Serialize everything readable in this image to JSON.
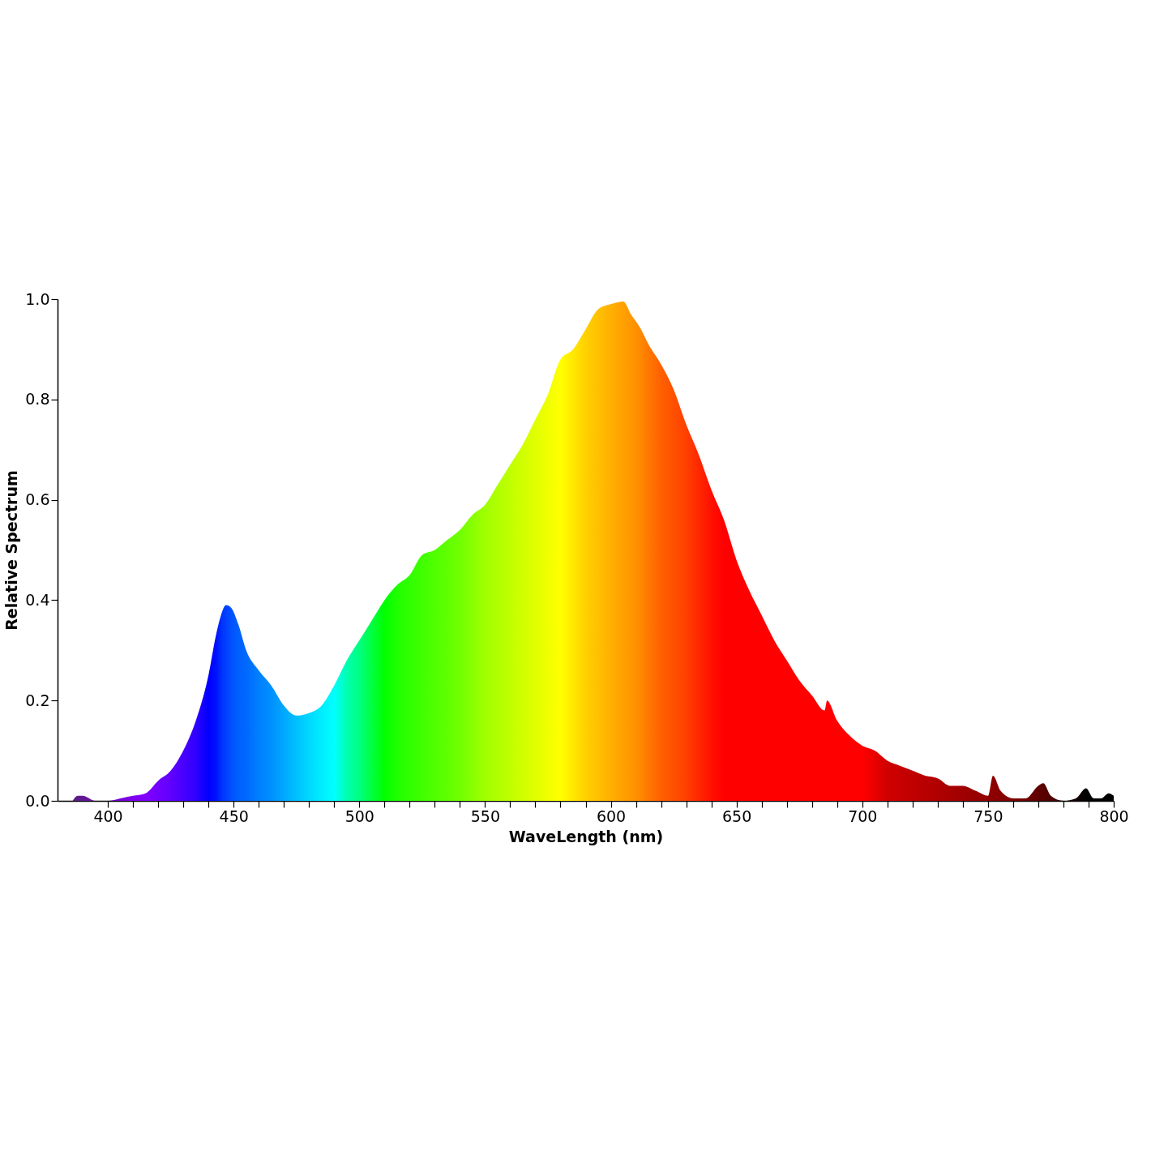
{
  "chart_data": {
    "type": "area",
    "xlabel": "WaveLength (nm)",
    "ylabel": "Relative Spectrum",
    "xlim": [
      380,
      800
    ],
    "ylim": [
      0,
      1
    ],
    "xticks": [
      400,
      {
        "value": 410,
        "label": null
      },
      {
        "value": 420,
        "label": null
      },
      {
        "value": 430,
        "label": null
      },
      {
        "value": 440,
        "label": null
      },
      450,
      {
        "value": 460,
        "label": null
      },
      {
        "value": 470,
        "label": null
      },
      {
        "value": 480,
        "label": null
      },
      {
        "value": 490,
        "label": null
      },
      500,
      {
        "value": 510,
        "label": null
      },
      {
        "value": 520,
        "label": null
      },
      {
        "value": 530,
        "label": null
      },
      {
        "value": 540,
        "label": null
      },
      550,
      {
        "value": 560,
        "label": null
      },
      {
        "value": 570,
        "label": null
      },
      {
        "value": 580,
        "label": null
      },
      {
        "value": 590,
        "label": null
      },
      600,
      {
        "value": 610,
        "label": null
      },
      {
        "value": 620,
        "label": null
      },
      {
        "value": 630,
        "label": null
      },
      {
        "value": 640,
        "label": null
      },
      650,
      {
        "value": 660,
        "label": null
      },
      {
        "value": 670,
        "label": null
      },
      {
        "value": 680,
        "label": null
      },
      {
        "value": 690,
        "label": null
      },
      700,
      {
        "value": 710,
        "label": null
      },
      {
        "value": 720,
        "label": null
      },
      {
        "value": 730,
        "label": null
      },
      {
        "value": 740,
        "label": null
      },
      750,
      {
        "value": 760,
        "label": null
      },
      {
        "value": 770,
        "label": null
      },
      {
        "value": 780,
        "label": null
      },
      {
        "value": 790,
        "label": null
      },
      800
    ],
    "yticks": [
      {
        "value": 0,
        "label": "0.0"
      },
      0.2,
      0.4,
      0.6,
      0.8,
      {
        "value": 1,
        "label": "1.0"
      }
    ],
    "grid": false,
    "series": [
      {
        "x": [
          386,
          388,
          390,
          395,
          400,
          405,
          410,
          415,
          420,
          425,
          430,
          435,
          440,
          443,
          445,
          447,
          449,
          452,
          455,
          460,
          465,
          470,
          475,
          480,
          485,
          490,
          495,
          500,
          505,
          510,
          515,
          520,
          525,
          530,
          535,
          540,
          545,
          550,
          555,
          560,
          565,
          570,
          575,
          580,
          585,
          590,
          595,
          600,
          605,
          608,
          612,
          615,
          620,
          625,
          630,
          635,
          640,
          645,
          650,
          655,
          660,
          665,
          670,
          675,
          680,
          685,
          686,
          690,
          695,
          700,
          705,
          710,
          715,
          720,
          725,
          730,
          735,
          740,
          745,
          750,
          752,
          755,
          760,
          765,
          770,
          772,
          775,
          780,
          785,
          789,
          792,
          795,
          798,
          800
        ],
        "values": [
          0,
          0.01,
          0.01,
          0,
          0,
          0.005,
          0.01,
          0.015,
          0.04,
          0.06,
          0.1,
          0.16,
          0.25,
          0.33,
          0.37,
          0.39,
          0.385,
          0.35,
          0.3,
          0.26,
          0.23,
          0.19,
          0.17,
          0.175,
          0.19,
          0.23,
          0.28,
          0.32,
          0.36,
          0.4,
          0.43,
          0.45,
          0.49,
          0.5,
          0.52,
          0.54,
          0.57,
          0.59,
          0.63,
          0.67,
          0.71,
          0.76,
          0.81,
          0.88,
          0.9,
          0.94,
          0.98,
          0.99,
          0.995,
          0.97,
          0.94,
          0.91,
          0.87,
          0.82,
          0.75,
          0.69,
          0.62,
          0.56,
          0.48,
          0.42,
          0.37,
          0.32,
          0.28,
          0.24,
          0.21,
          0.18,
          0.2,
          0.16,
          0.13,
          0.11,
          0.1,
          0.08,
          0.07,
          0.06,
          0.05,
          0.045,
          0.03,
          0.03,
          0.02,
          0.01,
          0.05,
          0.02,
          0.005,
          0.005,
          0.03,
          0.035,
          0.01,
          0,
          0.005,
          0.025,
          0.005,
          0.005,
          0.015,
          0.01
        ],
        "colors": [
          "#5a1a80",
          "#5e1a8a",
          "#621a94",
          "#6a10a8",
          "#7000c0",
          "#7800d8",
          "#8000f0",
          "#8000ff",
          "#7000ff",
          "#6000ff",
          "#4800ff",
          "#3000ff",
          "#0000ff",
          "#0010ff",
          "#0030ff",
          "#0040ff",
          "#0050ff",
          "#0060ff",
          "#0068ff",
          "#0080ff",
          "#0090ff",
          "#00a8ff",
          "#00c0ff",
          "#00d8ff",
          "#00ecff",
          "#00ffff",
          "#00ffb0",
          "#00ff80",
          "#00ff40",
          "#00ff00",
          "#20ff00",
          "#30ff00",
          "#40ff00",
          "#50ff00",
          "#60ff00",
          "#70ff00",
          "#88ff00",
          "#a0ff00",
          "#b0ff00",
          "#c0ff00",
          "#d0ff00",
          "#e0ff00",
          "#f0ff00",
          "#ffff00",
          "#ffe800",
          "#ffd000",
          "#ffc000",
          "#ffb000",
          "#ffa000",
          "#ff9800",
          "#ff8800",
          "#ff7800",
          "#ff6000",
          "#ff5000",
          "#ff4000",
          "#ff2800",
          "#ff1000",
          "#ff0000",
          "#ff0000",
          "#ff0000",
          "#ff0000",
          "#ff0000",
          "#ff0000",
          "#ff0000",
          "#ff0000",
          "#ff0000",
          "#ff0000",
          "#ff0000",
          "#ff0000",
          "#ff0000",
          "#e80000",
          "#d00000",
          "#c80000",
          "#c00000",
          "#b80000",
          "#b00000",
          "#a80000",
          "#a00000",
          "#980000",
          "#900000",
          "#8c0000",
          "#880000",
          "#800000",
          "#700000",
          "#600000",
          "#580000",
          "#500000",
          "#300000",
          "#100000",
          "#000000",
          "#000000",
          "#000000",
          "#000000",
          "#000000"
        ]
      }
    ]
  }
}
